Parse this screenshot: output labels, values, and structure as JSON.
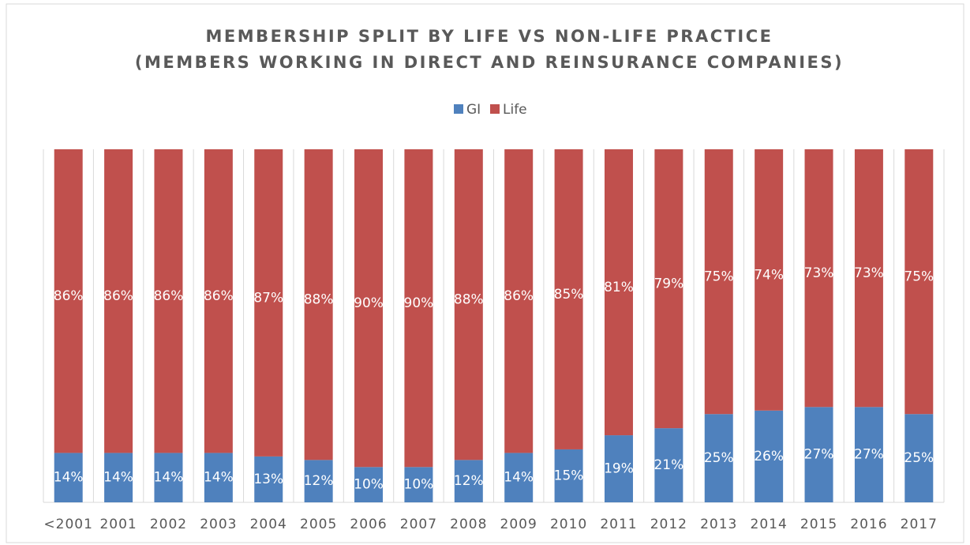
{
  "chart_data": {
    "type": "stacked_bar_100",
    "title": [
      "MEMBERSHIP SPLIT BY LIFE VS NON-LIFE PRACTICE",
      "(MEMBERS WORKING IN DIRECT AND REINSURANCE COMPANIES)"
    ],
    "categories": [
      "<2001",
      "2001",
      "2002",
      "2003",
      "2004",
      "2005",
      "2006",
      "2007",
      "2008",
      "2009",
      "2010",
      "2011",
      "2012",
      "2013",
      "2014",
      "2015",
      "2016",
      "2017"
    ],
    "series": [
      {
        "name": "GI",
        "color": "#4f81bd",
        "values": [
          14,
          14,
          14,
          14,
          13,
          12,
          10,
          10,
          12,
          14,
          15,
          19,
          21,
          25,
          26,
          27,
          27,
          25
        ],
        "value_labels": [
          "14%",
          "14%",
          "14%",
          "14%",
          "13%",
          "12%",
          "10%",
          "10%",
          "12%",
          "14%",
          "15%",
          "19%",
          "21%",
          "25%",
          "26%",
          "27%",
          "27%",
          "25%"
        ]
      },
      {
        "name": "Life",
        "color": "#c0504d",
        "values": [
          86,
          86,
          86,
          86,
          87,
          88,
          90,
          90,
          88,
          86,
          85,
          81,
          79,
          75,
          74,
          73,
          73,
          75
        ],
        "value_labels": [
          "86%",
          "86%",
          "86%",
          "86%",
          "87%",
          "88%",
          "90%",
          "90%",
          "88%",
          "86%",
          "85%",
          "81%",
          "79%",
          "75%",
          "74%",
          "73%",
          "73%",
          "75%"
        ]
      }
    ],
    "ylim": [
      0,
      100
    ],
    "legend": "top"
  }
}
